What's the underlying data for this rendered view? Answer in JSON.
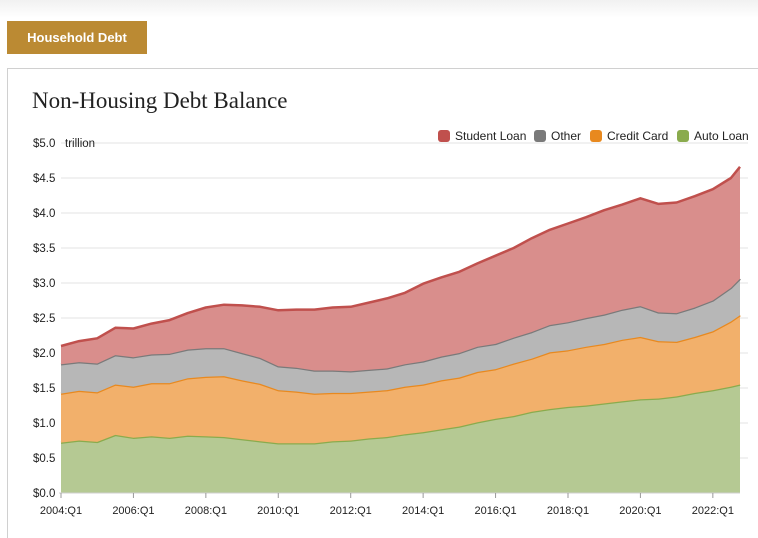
{
  "header": {
    "tab_label": "Household Debt"
  },
  "chart_data": {
    "type": "area",
    "stacked": true,
    "title": "Non-Housing Debt Balance",
    "y_unit": "trillion",
    "ylim": [
      0,
      5
    ],
    "y_ticks": [
      {
        "value": 0.0,
        "label": "$0.0"
      },
      {
        "value": 0.5,
        "label": "$0.5"
      },
      {
        "value": 1.0,
        "label": "$1.0"
      },
      {
        "value": 1.5,
        "label": "$1.5"
      },
      {
        "value": 2.0,
        "label": "$2.0"
      },
      {
        "value": 2.5,
        "label": "$2.5"
      },
      {
        "value": 3.0,
        "label": "$3.0"
      },
      {
        "value": 3.5,
        "label": "$3.5"
      },
      {
        "value": 4.0,
        "label": "$4.0"
      },
      {
        "value": 4.5,
        "label": "$4.5"
      },
      {
        "value": 5.0,
        "label": "$5.0"
      }
    ],
    "x_tick_labels": [
      "2004:Q1",
      "2006:Q1",
      "2008:Q1",
      "2010:Q1",
      "2012:Q1",
      "2014:Q1",
      "2016:Q1",
      "2018:Q1",
      "2020:Q1",
      "2022:Q1"
    ],
    "x_tick_years": [
      2004,
      2006,
      2008,
      2010,
      2012,
      2014,
      2016,
      2018,
      2020,
      2022
    ],
    "x_range": [
      "2004:Q1",
      "2022:Q4"
    ],
    "legend_position": "top-right",
    "legend_order": [
      "Student Loan",
      "Other",
      "Credit Card",
      "Auto Loan"
    ],
    "grid": true,
    "series": [
      {
        "name": "Auto Loan",
        "color": "#8aab4d",
        "fill": "#b5c993",
        "points": [
          [
            "2004:Q1",
            0.72
          ],
          [
            "2004:Q3",
            0.75
          ],
          [
            "2005:Q1",
            0.73
          ],
          [
            "2005:Q3",
            0.83
          ],
          [
            "2006:Q1",
            0.79
          ],
          [
            "2006:Q3",
            0.81
          ],
          [
            "2007:Q1",
            0.79
          ],
          [
            "2007:Q3",
            0.82
          ],
          [
            "2008:Q1",
            0.81
          ],
          [
            "2008:Q3",
            0.8
          ],
          [
            "2009:Q1",
            0.77
          ],
          [
            "2009:Q3",
            0.74
          ],
          [
            "2010:Q1",
            0.71
          ],
          [
            "2010:Q3",
            0.71
          ],
          [
            "2011:Q1",
            0.71
          ],
          [
            "2011:Q3",
            0.74
          ],
          [
            "2012:Q1",
            0.75
          ],
          [
            "2012:Q3",
            0.78
          ],
          [
            "2013:Q1",
            0.8
          ],
          [
            "2013:Q3",
            0.84
          ],
          [
            "2014:Q1",
            0.87
          ],
          [
            "2014:Q3",
            0.91
          ],
          [
            "2015:Q1",
            0.95
          ],
          [
            "2015:Q3",
            1.01
          ],
          [
            "2016:Q1",
            1.06
          ],
          [
            "2016:Q3",
            1.1
          ],
          [
            "2017:Q1",
            1.16
          ],
          [
            "2017:Q3",
            1.2
          ],
          [
            "2018:Q1",
            1.23
          ],
          [
            "2018:Q3",
            1.25
          ],
          [
            "2019:Q1",
            1.28
          ],
          [
            "2019:Q3",
            1.31
          ],
          [
            "2020:Q1",
            1.34
          ],
          [
            "2020:Q3",
            1.35
          ],
          [
            "2021:Q1",
            1.38
          ],
          [
            "2021:Q3",
            1.43
          ],
          [
            "2022:Q1",
            1.47
          ],
          [
            "2022:Q3",
            1.52
          ],
          [
            "2022:Q4",
            1.55
          ]
        ]
      },
      {
        "name": "Credit Card",
        "color": "#e8891f",
        "fill": "#f2b06b",
        "points": [
          [
            "2004:Q1",
            0.7
          ],
          [
            "2004:Q3",
            0.71
          ],
          [
            "2005:Q1",
            0.71
          ],
          [
            "2005:Q3",
            0.72
          ],
          [
            "2006:Q1",
            0.73
          ],
          [
            "2006:Q3",
            0.76
          ],
          [
            "2007:Q1",
            0.78
          ],
          [
            "2007:Q3",
            0.82
          ],
          [
            "2008:Q1",
            0.85
          ],
          [
            "2008:Q3",
            0.87
          ],
          [
            "2009:Q1",
            0.84
          ],
          [
            "2009:Q3",
            0.82
          ],
          [
            "2010:Q1",
            0.76
          ],
          [
            "2010:Q3",
            0.74
          ],
          [
            "2011:Q1",
            0.71
          ],
          [
            "2011:Q3",
            0.69
          ],
          [
            "2012:Q1",
            0.68
          ],
          [
            "2012:Q3",
            0.67
          ],
          [
            "2013:Q1",
            0.67
          ],
          [
            "2013:Q3",
            0.68
          ],
          [
            "2014:Q1",
            0.68
          ],
          [
            "2014:Q3",
            0.7
          ],
          [
            "2015:Q1",
            0.7
          ],
          [
            "2015:Q3",
            0.72
          ],
          [
            "2016:Q1",
            0.71
          ],
          [
            "2016:Q3",
            0.75
          ],
          [
            "2017:Q1",
            0.76
          ],
          [
            "2017:Q3",
            0.81
          ],
          [
            "2018:Q1",
            0.81
          ],
          [
            "2018:Q3",
            0.84
          ],
          [
            "2019:Q1",
            0.85
          ],
          [
            "2019:Q3",
            0.88
          ],
          [
            "2020:Q1",
            0.89
          ],
          [
            "2020:Q3",
            0.82
          ],
          [
            "2021:Q1",
            0.78
          ],
          [
            "2021:Q3",
            0.8
          ],
          [
            "2022:Q1",
            0.84
          ],
          [
            "2022:Q3",
            0.93
          ],
          [
            "2022:Q4",
            0.99
          ]
        ]
      },
      {
        "name": "Other",
        "color": "#7a7a7a",
        "fill": "#b7b7b7",
        "points": [
          [
            "2004:Q1",
            0.42
          ],
          [
            "2004:Q3",
            0.41
          ],
          [
            "2005:Q1",
            0.41
          ],
          [
            "2005:Q3",
            0.42
          ],
          [
            "2006:Q1",
            0.42
          ],
          [
            "2006:Q3",
            0.41
          ],
          [
            "2007:Q1",
            0.42
          ],
          [
            "2007:Q3",
            0.41
          ],
          [
            "2008:Q1",
            0.41
          ],
          [
            "2008:Q3",
            0.4
          ],
          [
            "2009:Q1",
            0.39
          ],
          [
            "2009:Q3",
            0.37
          ],
          [
            "2010:Q1",
            0.34
          ],
          [
            "2010:Q3",
            0.34
          ],
          [
            "2011:Q1",
            0.33
          ],
          [
            "2011:Q3",
            0.32
          ],
          [
            "2012:Q1",
            0.31
          ],
          [
            "2012:Q3",
            0.31
          ],
          [
            "2013:Q1",
            0.31
          ],
          [
            "2013:Q3",
            0.32
          ],
          [
            "2014:Q1",
            0.33
          ],
          [
            "2014:Q3",
            0.34
          ],
          [
            "2015:Q1",
            0.35
          ],
          [
            "2015:Q3",
            0.36
          ],
          [
            "2016:Q1",
            0.36
          ],
          [
            "2016:Q3",
            0.37
          ],
          [
            "2017:Q1",
            0.38
          ],
          [
            "2017:Q3",
            0.39
          ],
          [
            "2018:Q1",
            0.4
          ],
          [
            "2018:Q3",
            0.41
          ],
          [
            "2019:Q1",
            0.42
          ],
          [
            "2019:Q3",
            0.43
          ],
          [
            "2020:Q1",
            0.44
          ],
          [
            "2020:Q3",
            0.41
          ],
          [
            "2021:Q1",
            0.41
          ],
          [
            "2021:Q3",
            0.42
          ],
          [
            "2022:Q1",
            0.44
          ],
          [
            "2022:Q3",
            0.48
          ],
          [
            "2022:Q4",
            0.52
          ]
        ]
      },
      {
        "name": "Student Loan",
        "color": "#c0504d",
        "fill": "#d98e8c",
        "points": [
          [
            "2004:Q1",
            0.26
          ],
          [
            "2004:Q3",
            0.3
          ],
          [
            "2005:Q1",
            0.36
          ],
          [
            "2005:Q3",
            0.39
          ],
          [
            "2006:Q1",
            0.41
          ],
          [
            "2006:Q3",
            0.44
          ],
          [
            "2007:Q1",
            0.48
          ],
          [
            "2007:Q3",
            0.52
          ],
          [
            "2008:Q1",
            0.58
          ],
          [
            "2008:Q3",
            0.62
          ],
          [
            "2009:Q1",
            0.68
          ],
          [
            "2009:Q3",
            0.73
          ],
          [
            "2010:Q1",
            0.8
          ],
          [
            "2010:Q3",
            0.83
          ],
          [
            "2011:Q1",
            0.87
          ],
          [
            "2011:Q3",
            0.9
          ],
          [
            "2012:Q1",
            0.92
          ],
          [
            "2012:Q3",
            0.96
          ],
          [
            "2013:Q1",
            1.0
          ],
          [
            "2013:Q3",
            1.02
          ],
          [
            "2014:Q1",
            1.11
          ],
          [
            "2014:Q3",
            1.13
          ],
          [
            "2015:Q1",
            1.16
          ],
          [
            "2015:Q3",
            1.19
          ],
          [
            "2016:Q1",
            1.26
          ],
          [
            "2016:Q3",
            1.28
          ],
          [
            "2017:Q1",
            1.34
          ],
          [
            "2017:Q3",
            1.36
          ],
          [
            "2018:Q1",
            1.41
          ],
          [
            "2018:Q3",
            1.44
          ],
          [
            "2019:Q1",
            1.49
          ],
          [
            "2019:Q3",
            1.5
          ],
          [
            "2020:Q1",
            1.54
          ],
          [
            "2020:Q3",
            1.55
          ],
          [
            "2021:Q1",
            1.58
          ],
          [
            "2021:Q3",
            1.59
          ],
          [
            "2022:Q1",
            1.59
          ],
          [
            "2022:Q3",
            1.57
          ],
          [
            "2022:Q4",
            1.6
          ]
        ]
      }
    ]
  }
}
